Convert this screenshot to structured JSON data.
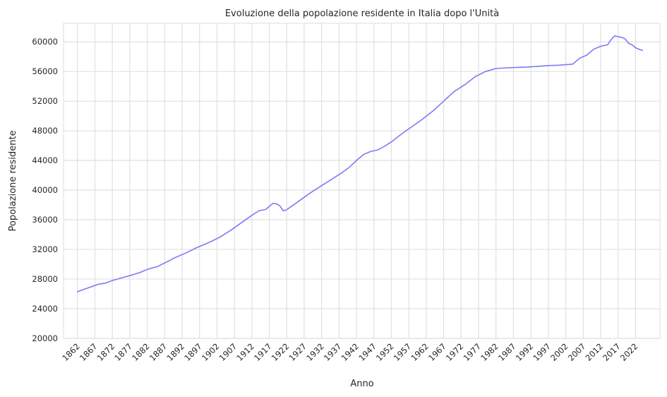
{
  "chart_data": {
    "type": "line",
    "title": "Evoluzione della popolazione residente in Italia dopo l'Unità",
    "xlabel": "Anno",
    "ylabel": "Popolazione residente",
    "xlim": [
      1858,
      2029
    ],
    "ylim": [
      20000,
      62500
    ],
    "grid": true,
    "legend": "none",
    "x_ticks": [
      1862,
      1867,
      1872,
      1877,
      1882,
      1887,
      1892,
      1897,
      1902,
      1907,
      1912,
      1917,
      1922,
      1927,
      1932,
      1937,
      1942,
      1947,
      1952,
      1957,
      1962,
      1967,
      1972,
      1977,
      1982,
      1987,
      1992,
      1997,
      2002,
      2007,
      2012,
      2017,
      2022
    ],
    "y_ticks": [
      20000,
      24000,
      28000,
      32000,
      36000,
      40000,
      44000,
      48000,
      52000,
      56000,
      60000
    ],
    "series": [
      {
        "color": "#7b7bf5",
        "x": [
          1862,
          1865,
          1868,
          1870,
          1872,
          1875,
          1878,
          1880,
          1882,
          1885,
          1888,
          1890,
          1893,
          1896,
          1900,
          1903,
          1906,
          1909,
          1912,
          1914,
          1916,
          1917,
          1918,
          1919,
          1920,
          1921,
          1922,
          1923,
          1926,
          1929,
          1932,
          1935,
          1938,
          1940,
          1942,
          1944,
          1946,
          1948,
          1950,
          1952,
          1955,
          1958,
          1961,
          1964,
          1967,
          1970,
          1973,
          1976,
          1979,
          1982,
          1985,
          1988,
          1991,
          1994,
          1997,
          2000,
          2003,
          2004,
          2006,
          2008,
          2010,
          2012,
          2014,
          2015,
          2016,
          2017,
          2018,
          2019,
          2020,
          2021,
          2022,
          2023,
          2024
        ],
        "y": [
          26300,
          26800,
          27300,
          27450,
          27800,
          28200,
          28600,
          28900,
          29300,
          29700,
          30400,
          30900,
          31500,
          32200,
          33000,
          33700,
          34600,
          35600,
          36600,
          37200,
          37400,
          37800,
          38200,
          38150,
          37900,
          37200,
          37350,
          37700,
          38700,
          39700,
          40600,
          41500,
          42400,
          43100,
          44000,
          44800,
          45200,
          45400,
          45900,
          46500,
          47600,
          48600,
          49600,
          50700,
          52000,
          53300,
          54200,
          55300,
          56000,
          56400,
          56500,
          56550,
          56600,
          56700,
          56800,
          56850,
          56950,
          57000,
          57800,
          58200,
          59000,
          59400,
          59600,
          60300,
          60800,
          60700,
          60600,
          60400,
          59800,
          59600,
          59200,
          59000,
          58850
        ]
      }
    ]
  }
}
